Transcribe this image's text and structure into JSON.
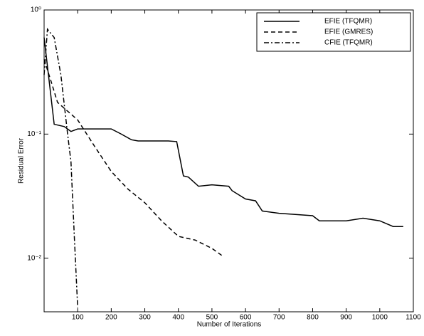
{
  "chart_data": {
    "type": "line",
    "xlabel": "Number of Iterations",
    "ylabel": "Residual Error",
    "xlim": [
      0,
      1100
    ],
    "xticks": [
      100,
      200,
      300,
      400,
      500,
      600,
      700,
      800,
      900,
      1000,
      1100
    ],
    "ylim": [
      0.0037,
      1
    ],
    "yscale": "log",
    "yticks": [
      {
        "value": 0.01,
        "label": "10⁻²"
      },
      {
        "value": 0.1,
        "label": "10⁻¹"
      },
      {
        "value": 1,
        "label": "10⁰"
      }
    ],
    "legend": "upper right",
    "series": [
      {
        "name": "EFIE (TFQMR)",
        "color": "#000000",
        "dash": "solid",
        "x": [
          0,
          30,
          60,
          80,
          100,
          200,
          230,
          260,
          280,
          370,
          395,
          415,
          430,
          460,
          500,
          550,
          560,
          600,
          630,
          650,
          700,
          800,
          820,
          900,
          950,
          1000,
          1040,
          1070
        ],
        "values": [
          0.6,
          0.12,
          0.115,
          0.105,
          0.11,
          0.11,
          0.1,
          0.09,
          0.088,
          0.088,
          0.087,
          0.046,
          0.045,
          0.038,
          0.039,
          0.038,
          0.035,
          0.03,
          0.029,
          0.024,
          0.023,
          0.022,
          0.02,
          0.02,
          0.021,
          0.02,
          0.018,
          0.018
        ]
      },
      {
        "name": "EFIE (GMRES)",
        "color": "#000000",
        "dash": "dashed",
        "x": [
          0,
          20,
          40,
          100,
          150,
          200,
          250,
          300,
          350,
          400,
          450,
          500,
          530
        ],
        "values": [
          0.4,
          0.27,
          0.18,
          0.13,
          0.08,
          0.05,
          0.036,
          0.028,
          0.02,
          0.015,
          0.014,
          0.012,
          0.0105
        ]
      },
      {
        "name": "CFIE (TFQMR)",
        "color": "#000000",
        "dash": "dashdot",
        "x": [
          0,
          10,
          30,
          50,
          70,
          80,
          90,
          100
        ],
        "values": [
          0.3,
          0.7,
          0.6,
          0.3,
          0.1,
          0.06,
          0.015,
          0.004
        ]
      }
    ]
  }
}
